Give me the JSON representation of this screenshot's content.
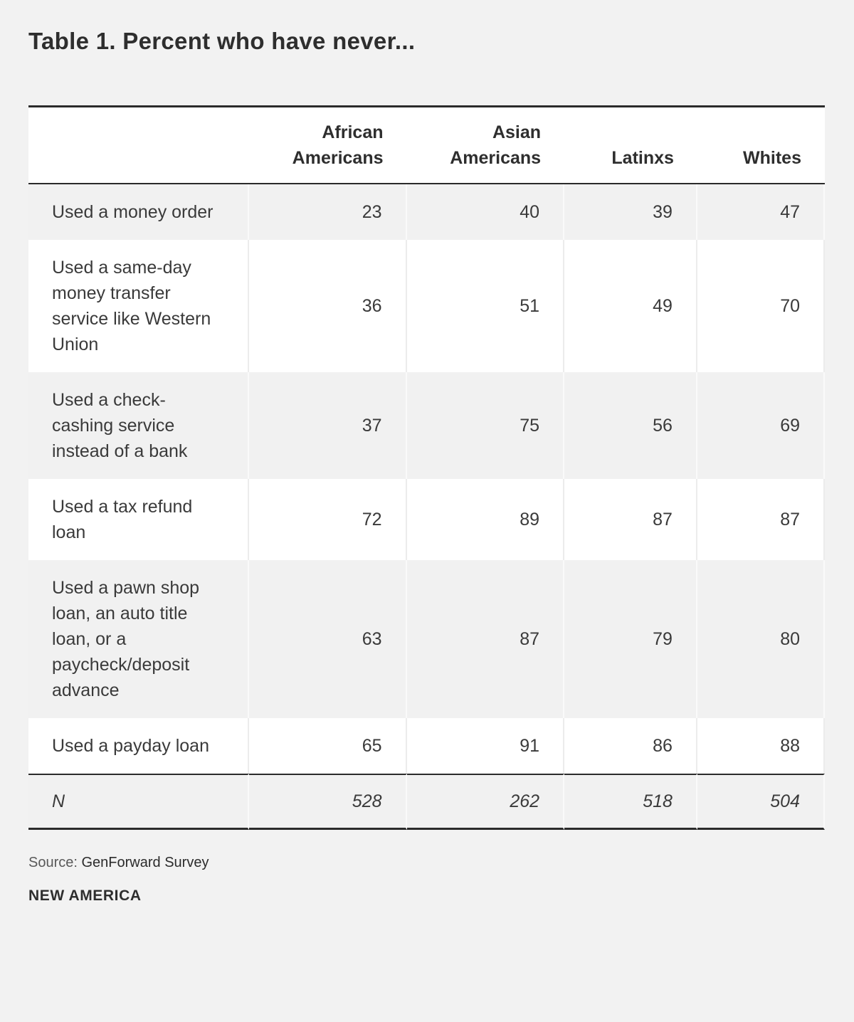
{
  "title": "Table 1. Percent who have never...",
  "source": {
    "label": "Source:",
    "value": "GenForward Survey"
  },
  "branding": "NEW AMERICA",
  "colors": {
    "page_background": "#f2f2f2",
    "row_stripe": "#f1f1f1",
    "dark_border": "#2b2b2b",
    "text": "#3a3a3a"
  },
  "chart_data": {
    "type": "table",
    "title": "Table 1. Percent who have never...",
    "columns": [
      "African Americans",
      "Asian Americans",
      "Latinxs",
      "Whites"
    ],
    "rows": [
      {
        "label": "Used a money order",
        "values": [
          23,
          40,
          39,
          47
        ]
      },
      {
        "label": "Used a same-day money transfer service like Western Union",
        "values": [
          36,
          51,
          49,
          70
        ]
      },
      {
        "label": "Used a check-cashing service instead of a bank",
        "values": [
          37,
          75,
          56,
          69
        ]
      },
      {
        "label": "Used a tax refund loan",
        "values": [
          72,
          89,
          87,
          87
        ]
      },
      {
        "label": "Used a pawn shop loan, an auto title loan, or a paycheck/deposit advance",
        "values": [
          63,
          87,
          79,
          80
        ]
      },
      {
        "label": "Used a payday loan",
        "values": [
          65,
          91,
          86,
          88
        ]
      }
    ],
    "footer_row": {
      "label": "N",
      "values": [
        528,
        262,
        518,
        504
      ]
    },
    "source": "GenForward Survey",
    "layout": {
      "striped": true,
      "value_alignment": "right",
      "grid": "vertical-dividers"
    }
  }
}
